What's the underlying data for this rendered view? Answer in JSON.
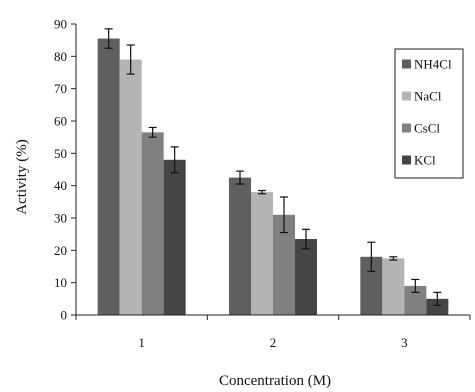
{
  "chart_data": {
    "type": "bar",
    "title": "",
    "xlabel": "Concentration (M)",
    "ylabel": "Activity (%)",
    "ylim": [
      0,
      90
    ],
    "yticks": [
      0,
      10,
      20,
      30,
      40,
      50,
      60,
      70,
      80,
      90
    ],
    "grid": false,
    "legend_position": "right",
    "categories": [
      "1",
      "2",
      "3"
    ],
    "series": [
      {
        "name": "NH4Cl",
        "color": "#5f5f5f",
        "values": [
          85.5,
          42.5,
          18.0
        ],
        "errors": [
          3.0,
          2.0,
          4.5
        ]
      },
      {
        "name": "NaCl",
        "color": "#b4b4b4",
        "values": [
          79.0,
          38.0,
          17.5
        ],
        "errors": [
          4.5,
          0.5,
          0.5
        ]
      },
      {
        "name": "CsCl",
        "color": "#808080",
        "values": [
          56.5,
          31.0,
          9.0
        ],
        "errors": [
          1.5,
          5.5,
          2.0
        ]
      },
      {
        "name": "KCl",
        "color": "#454545",
        "values": [
          48.0,
          23.5,
          5.0
        ],
        "errors": [
          4.0,
          3.0,
          2.0
        ]
      }
    ]
  }
}
